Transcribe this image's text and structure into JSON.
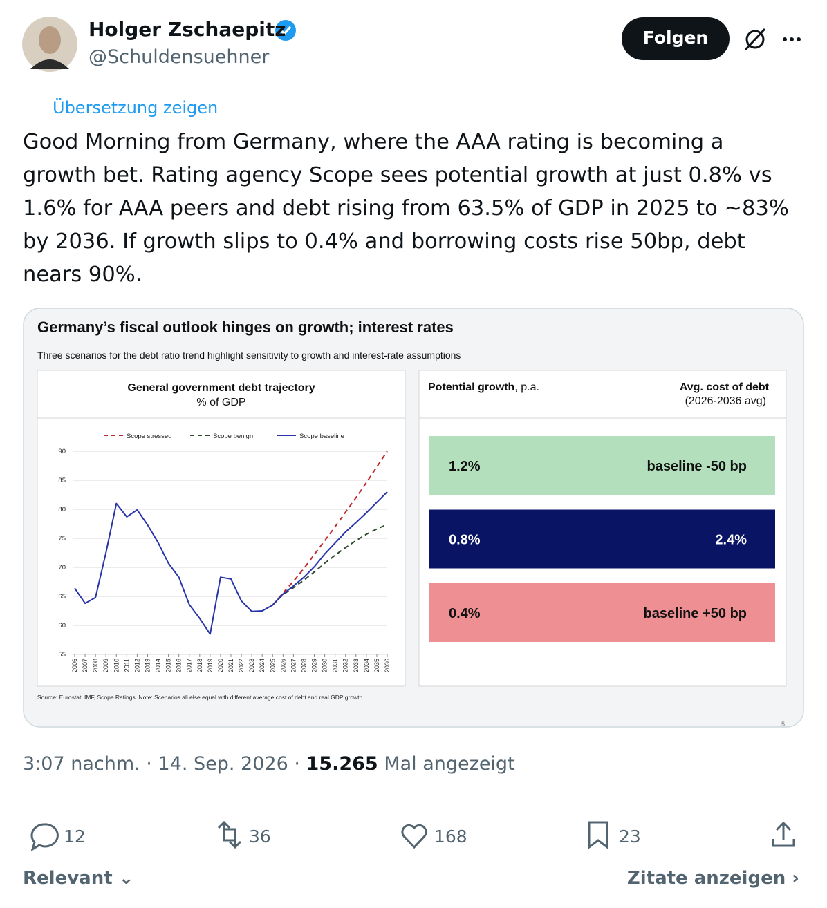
{
  "tweet": {
    "author": "Holger Zschaepitz",
    "handle": "@Schuldensuehner",
    "follow": "Folgen",
    "translate": "Übersetzung zeigen",
    "text": "Good Morning from Germany, where the AAA rating is becoming a growth bet. Rating agency Scope sees potential growth at just 0.8% vs 1.6% for AAA peers and debt rising from 63.5% of GDP in 2025 to ~83% by 2036. If growth slips to 0.4% and borrowing costs rise 50bp, debt nears 90%.",
    "time": "3:07 nachm.",
    "date": "14. Sep. 2026",
    "views": "15.265",
    "views_label": "Mal angezeigt",
    "replies": "12",
    "reposts": "36",
    "likes": "168",
    "bookmarks": "23",
    "sort": "Relevant",
    "quotes": "Zitate anzeigen"
  },
  "chart_data": {
    "type": "line",
    "title": "Germany’s fiscal outlook hinges on growth; interest rates",
    "subtitle": "Three scenarios for the debt ratio trend highlight sensitivity to growth and interest-rate assumptions",
    "panel_title": "General government debt trajectory",
    "y_label": "% of GDP",
    "x": [
      2006,
      2007,
      2008,
      2009,
      2010,
      2011,
      2012,
      2013,
      2014,
      2015,
      2016,
      2017,
      2018,
      2019,
      2020,
      2021,
      2022,
      2023,
      2024,
      2025,
      2026,
      2027,
      2028,
      2029,
      2030,
      2031,
      2032,
      2033,
      2034,
      2035,
      2036
    ],
    "xlim": [
      2006,
      2036
    ],
    "ylim": [
      55,
      90
    ],
    "yticks": [
      55,
      60,
      65,
      70,
      75,
      80,
      85,
      90
    ],
    "grid": true,
    "series": [
      {
        "name": "Scope stressed",
        "color": "#c0282d",
        "style": "dashed",
        "values": [
          null,
          null,
          null,
          null,
          null,
          null,
          null,
          null,
          null,
          null,
          null,
          null,
          null,
          null,
          null,
          null,
          null,
          null,
          null,
          63.5,
          65.6,
          67.6,
          69.8,
          72.2,
          74.6,
          77.0,
          79.5,
          82.0,
          84.6,
          87.3,
          90.0
        ]
      },
      {
        "name": "Scope benign",
        "color": "#2d4a2d",
        "style": "dashed",
        "values": [
          null,
          null,
          null,
          null,
          null,
          null,
          null,
          null,
          null,
          null,
          null,
          null,
          null,
          null,
          null,
          null,
          null,
          null,
          null,
          63.5,
          65.3,
          66.5,
          67.8,
          69.2,
          70.7,
          72.1,
          73.4,
          74.6,
          75.7,
          76.6,
          77.4
        ]
      },
      {
        "name": "Scope baseline",
        "color": "#2733a8",
        "style": "solid",
        "values": [
          66.4,
          63.8,
          64.8,
          72.5,
          81.0,
          78.7,
          79.9,
          77.3,
          74.3,
          70.7,
          68.3,
          63.6,
          61.2,
          58.5,
          68.3,
          68.0,
          64.2,
          62.4,
          62.5,
          63.5,
          65.4,
          66.8,
          68.3,
          70.1,
          72.3,
          74.2,
          76.1,
          77.7,
          79.4,
          81.2,
          83.0
        ]
      }
    ],
    "source": "Source: Eurostat, IMF, Scope Ratings. Note: Scenarios all else equal with different average cost of debt and real GDP growth.",
    "page": "5",
    "scenarios": {
      "growth_header": {
        "bold": "Potential growth",
        "rest": ", p.a."
      },
      "cost_header": "Avg. cost of debt",
      "cost_note": "(2026-2036 avg)",
      "rows": [
        {
          "growth": "1.2%",
          "cost": "baseline -50 bp",
          "color": "#b3dfbc",
          "text_color": "#111111"
        },
        {
          "growth": "0.8%",
          "cost": "2.4%",
          "color": "#0a1464",
          "text_color": "#ffffff"
        },
        {
          "growth": "0.4%",
          "cost": "baseline +50 bp",
          "color": "#ee8f93",
          "text_color": "#111111"
        }
      ]
    }
  }
}
